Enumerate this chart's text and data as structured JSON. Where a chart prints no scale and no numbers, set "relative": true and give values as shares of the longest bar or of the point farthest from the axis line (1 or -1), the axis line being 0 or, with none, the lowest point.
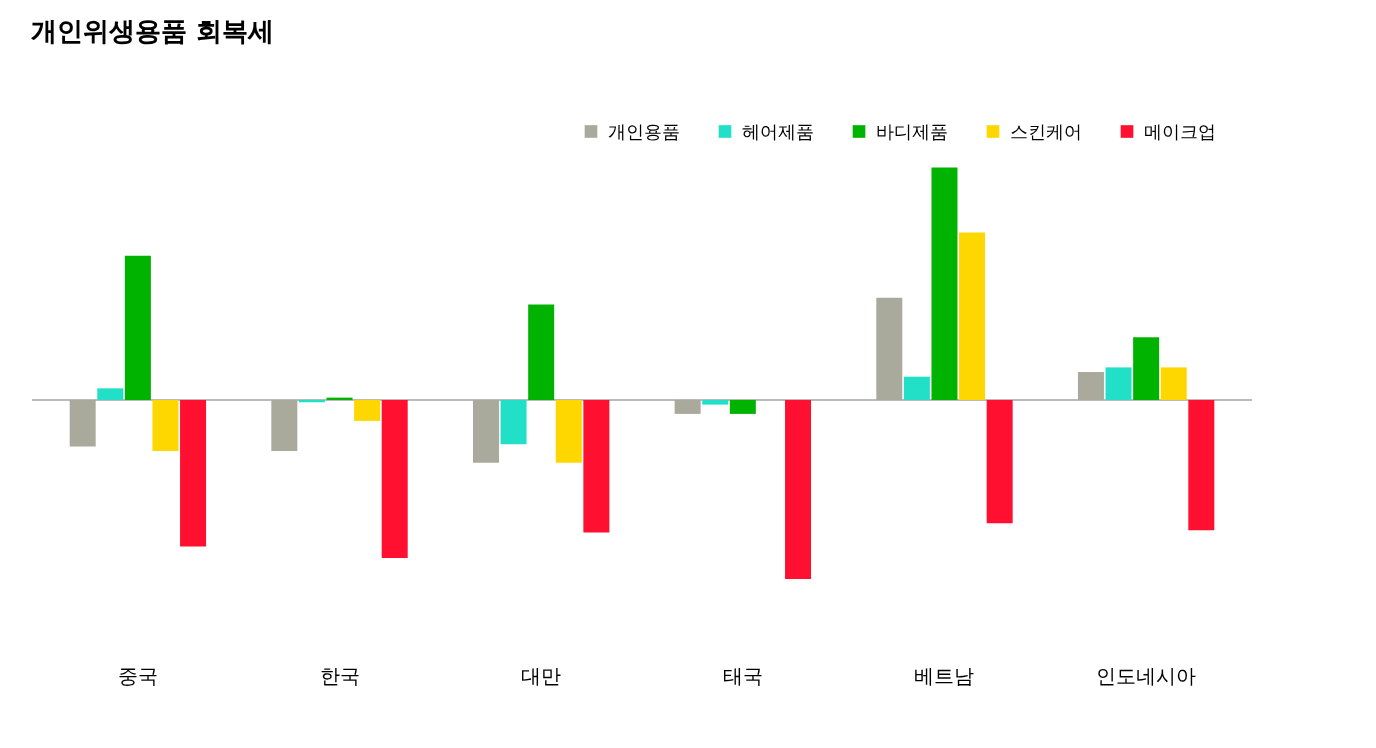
{
  "chart_data": {
    "type": "bar",
    "title": "개인위생용품 회복세",
    "relative": true,
    "categories": [
      "중국",
      "한국",
      "대만",
      "태국",
      "베트남",
      "인도네시아"
    ],
    "series": [
      {
        "name": "개인용품",
        "color": "#a9a99c",
        "values": [
          -0.2,
          -0.22,
          -0.27,
          -0.06,
          0.44,
          0.12
        ]
      },
      {
        "name": "헤어제품",
        "color": "#22e0c8",
        "values": [
          0.05,
          -0.01,
          -0.19,
          -0.02,
          0.1,
          0.14
        ]
      },
      {
        "name": "바디제품",
        "color": "#00b300",
        "values": [
          0.62,
          0.01,
          0.41,
          -0.06,
          1,
          0.27
        ]
      },
      {
        "name": "스킨케어",
        "color": "#ffd700",
        "values": [
          -0.22,
          -0.09,
          -0.27,
          0,
          0.72,
          0.14
        ]
      },
      {
        "name": "메이크업",
        "color": "#ff1030",
        "values": [
          -0.63,
          -0.68,
          -0.57,
          -0.77,
          -0.53,
          -0.56
        ]
      }
    ],
    "grid": false,
    "legend": "top right"
  }
}
